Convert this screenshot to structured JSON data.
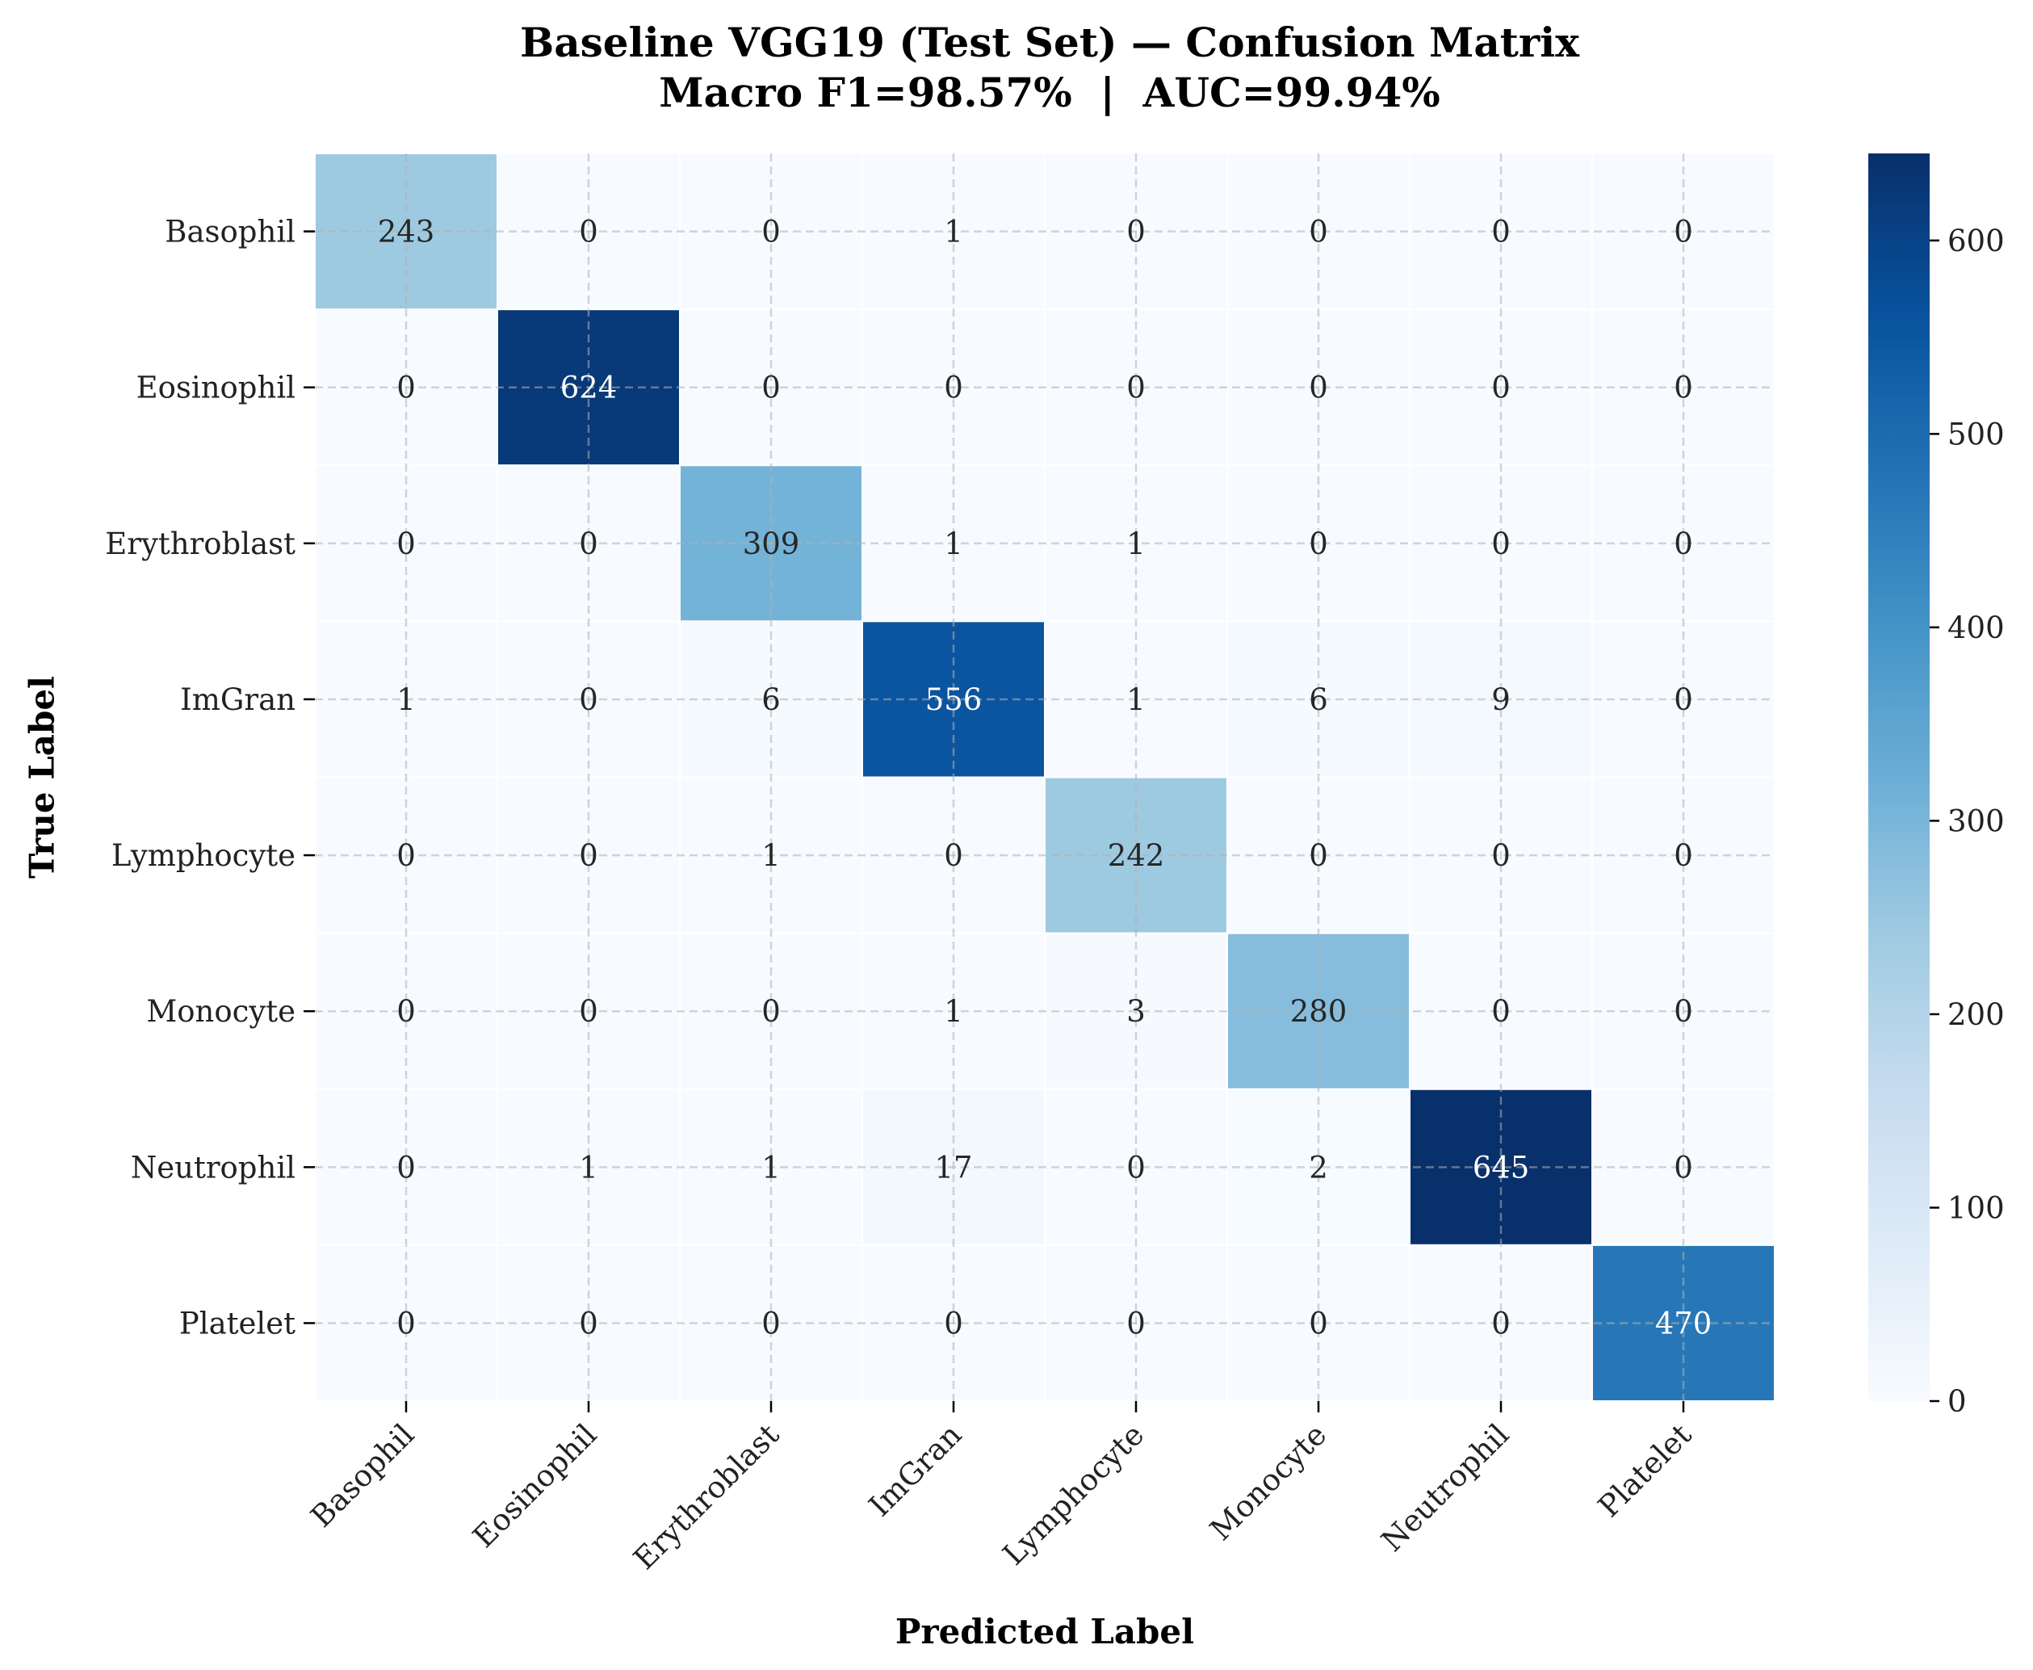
{
  "chart_data": {
    "type": "heatmap",
    "title": "Baseline VGG19 (Test Set) — Confusion Matrix",
    "subtitle": "Macro F1=98.57%  |  AUC=99.94%",
    "xlabel": "Predicted Label",
    "ylabel": "True Label",
    "row_labels": [
      "Basophil",
      "Eosinophil",
      "Erythroblast",
      "ImGran",
      "Lymphocyte",
      "Monocyte",
      "Neutrophil",
      "Platelet"
    ],
    "col_labels": [
      "Basophil",
      "Eosinophil",
      "Erythroblast",
      "ImGran",
      "Lymphocyte",
      "Monocyte",
      "Neutrophil",
      "Platelet"
    ],
    "matrix": [
      [
        243,
        0,
        0,
        1,
        0,
        0,
        0,
        0
      ],
      [
        0,
        624,
        0,
        0,
        0,
        0,
        0,
        0
      ],
      [
        0,
        0,
        309,
        1,
        1,
        0,
        0,
        0
      ],
      [
        1,
        0,
        6,
        556,
        1,
        6,
        9,
        0
      ],
      [
        0,
        0,
        1,
        0,
        242,
        0,
        0,
        0
      ],
      [
        0,
        0,
        0,
        1,
        3,
        280,
        0,
        0
      ],
      [
        0,
        1,
        1,
        17,
        0,
        2,
        645,
        0
      ],
      [
        0,
        0,
        0,
        0,
        0,
        0,
        0,
        470
      ]
    ],
    "colormap": "Blues",
    "colorbar_range": [
      0,
      645
    ],
    "colorbar_ticks": [
      0,
      100,
      200,
      300,
      400,
      500,
      600
    ],
    "grid": true
  }
}
